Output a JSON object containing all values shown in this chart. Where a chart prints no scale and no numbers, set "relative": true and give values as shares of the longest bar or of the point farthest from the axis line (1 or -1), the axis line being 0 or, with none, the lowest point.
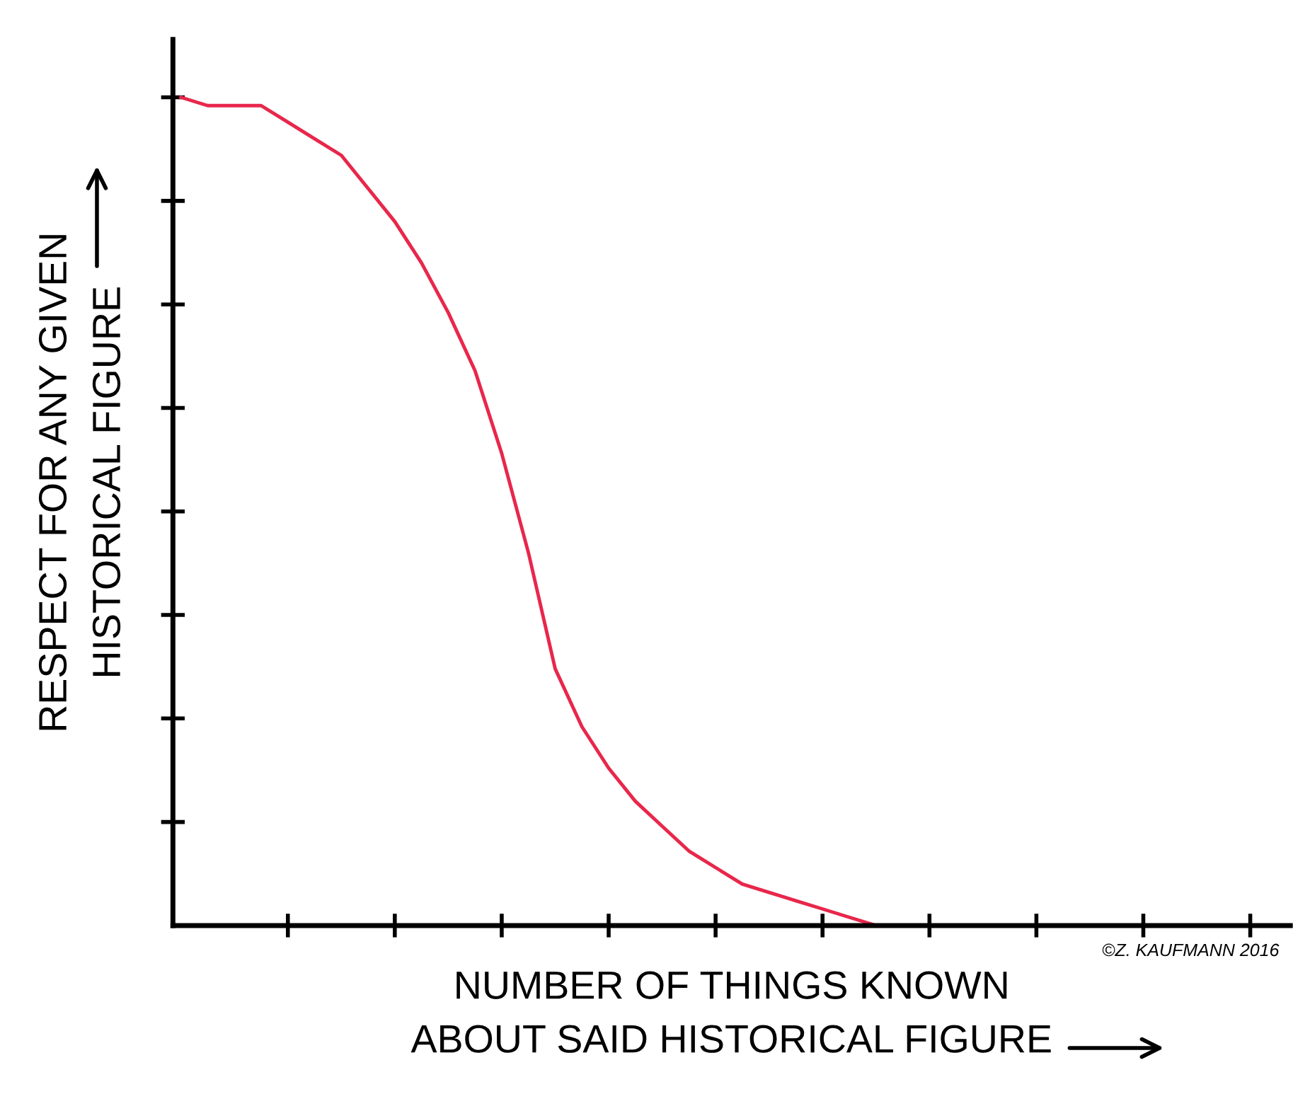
{
  "chart_data": {
    "type": "line",
    "relative": true,
    "xlabel": "NUMBER OF THINGS KNOWN\nABOUT SAID HISTORICAL FIGURE",
    "ylabel": "RESPECT FOR ANY GIVEN\nHISTORICAL FIGURE",
    "annotations": [
      "©Z. KAUFMANN 2016"
    ],
    "grid": false,
    "legend": false,
    "marker": "none",
    "line_style": "solid",
    "categories": [
      null,
      null,
      null,
      null,
      null,
      null,
      null,
      null,
      null,
      null,
      null,
      null,
      null,
      null,
      null,
      null,
      null,
      null,
      null,
      null,
      null,
      null,
      null,
      null,
      null,
      null,
      null,
      null,
      null,
      null,
      null,
      null,
      null,
      null,
      null,
      null,
      null,
      null,
      null,
      null,
      null,
      null
    ],
    "series": [
      {
        "color": "#e8274b",
        "values": [
          1.0,
          0.99,
          0.99,
          0.99,
          0.97,
          0.95,
          0.93,
          0.89,
          0.85,
          0.8,
          0.74,
          0.67,
          0.57,
          0.45,
          0.31,
          0.24,
          0.19,
          0.15,
          0.12,
          0.09,
          0.07,
          0.05,
          0.04,
          0.03,
          0.02,
          0.01,
          0.0,
          0.0,
          null,
          null,
          null,
          null,
          null,
          null,
          null,
          null,
          null,
          null,
          null,
          null,
          null,
          null
        ]
      }
    ]
  }
}
